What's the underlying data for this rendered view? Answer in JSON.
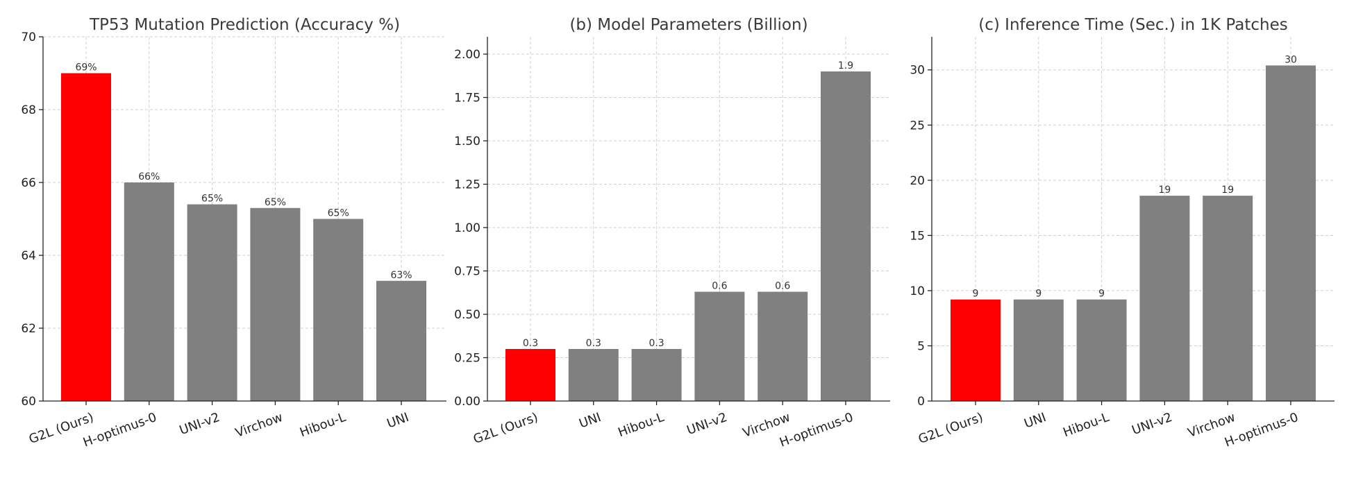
{
  "chart_data": [
    {
      "type": "bar",
      "title": "TP53 Mutation Prediction (Accuracy %)",
      "categories": [
        "G2L (Ours)",
        "H-optimus-0",
        "UNI-v2",
        "Virchow",
        "Hibou-L",
        "UNI"
      ],
      "values": [
        69.0,
        66.0,
        65.4,
        65.3,
        65.0,
        63.3
      ],
      "data_labels": [
        "69%",
        "66%",
        "65%",
        "65%",
        "65%",
        "63%"
      ],
      "highlight_index": 0,
      "ylim": [
        60,
        70
      ],
      "yticks": [
        60,
        62,
        64,
        66,
        68,
        70
      ],
      "ytick_labels": [
        "60",
        "62",
        "64",
        "66",
        "68",
        "70"
      ],
      "xlabel": "",
      "ylabel": "",
      "grid": true
    },
    {
      "type": "bar",
      "title": "(b) Model Parameters (Billion)",
      "categories": [
        "G2L (Ours)",
        "UNI",
        "Hibou-L",
        "UNI-v2",
        "Virchow",
        "H-optimus-0"
      ],
      "values": [
        0.3,
        0.3,
        0.3,
        0.63,
        0.63,
        1.9
      ],
      "data_labels": [
        "0.3",
        "0.3",
        "0.3",
        "0.6",
        "0.6",
        "1.9"
      ],
      "highlight_index": 0,
      "ylim": [
        0,
        2.1
      ],
      "yticks": [
        0,
        0.25,
        0.5,
        0.75,
        1.0,
        1.25,
        1.5,
        1.75,
        2.0
      ],
      "ytick_labels": [
        "0.00",
        "0.25",
        "0.50",
        "0.75",
        "1.00",
        "1.25",
        "1.50",
        "1.75",
        "2.00"
      ],
      "xlabel": "",
      "ylabel": "",
      "grid": true
    },
    {
      "type": "bar",
      "title": "(c) Inference Time (Sec.) in 1K Patches",
      "categories": [
        "G2L (Ours)",
        "UNI",
        "Hibou-L",
        "UNI-v2",
        "Virchow",
        "H-optimus-0"
      ],
      "values": [
        9.2,
        9.2,
        9.2,
        18.6,
        18.6,
        30.4
      ],
      "data_labels": [
        "9",
        "9",
        "9",
        "19",
        "19",
        "30"
      ],
      "highlight_index": 0,
      "ylim": [
        0,
        33
      ],
      "yticks": [
        0,
        5,
        10,
        15,
        20,
        25,
        30
      ],
      "ytick_labels": [
        "0",
        "5",
        "10",
        "15",
        "20",
        "25",
        "30"
      ],
      "xlabel": "",
      "ylabel": "",
      "grid": true
    }
  ],
  "colors": {
    "highlight": "#ff0000",
    "bar": "#808080",
    "grid": "#cfcfcf",
    "axis": "#222222"
  }
}
